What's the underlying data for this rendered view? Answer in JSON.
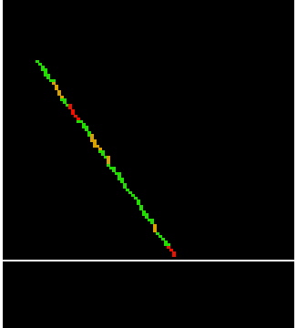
{
  "scene": {
    "background_color": "#000000",
    "panel_color": "#000000",
    "border_color": "#ffffff"
  },
  "track": {
    "colors": {
      "normal": "#22dd00",
      "warning": "#d8a000",
      "danger": "#ee1100"
    },
    "segment_states": [
      "normal",
      "normal",
      "normal",
      "warning",
      "warning",
      "normal",
      "danger",
      "danger",
      "normal",
      "normal",
      "warning",
      "warning",
      "normal",
      "warning",
      "normal",
      "normal",
      "normal",
      "normal",
      "normal",
      "normal",
      "normal",
      "normal",
      "warning",
      "normal",
      "normal",
      "danger"
    ]
  }
}
